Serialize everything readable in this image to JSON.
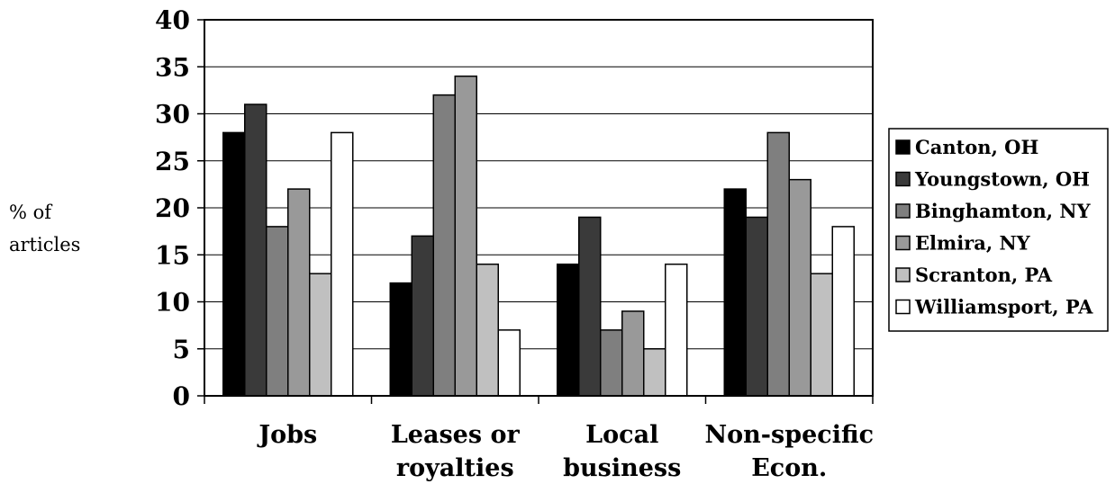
{
  "chart_data": {
    "type": "bar",
    "ylabel": "% of articles",
    "ylabel_lines": [
      "% of",
      "articles"
    ],
    "xlabel": "",
    "ylim": [
      0,
      40
    ],
    "yticks": [
      0,
      5,
      10,
      15,
      20,
      25,
      30,
      35,
      40
    ],
    "grid": "horizontal",
    "legend_position": "right",
    "categories": [
      "Jobs",
      "Leases or royalties",
      "Local business",
      "Non-specific Econ."
    ],
    "category_lines": [
      [
        "Jobs"
      ],
      [
        "Leases or",
        "royalties"
      ],
      [
        "Local",
        "business"
      ],
      [
        "Non-specific",
        "Econ."
      ]
    ],
    "series": [
      {
        "name": "Canton, OH",
        "color": "#000000",
        "values": [
          28,
          12,
          14,
          22
        ]
      },
      {
        "name": "Youngstown, OH",
        "color": "#3a3a3a",
        "values": [
          31,
          17,
          19,
          19
        ]
      },
      {
        "name": "Binghamton, NY",
        "color": "#7f7f7f",
        "values": [
          18,
          32,
          7,
          28
        ]
      },
      {
        "name": "Elmira, NY",
        "color": "#999999",
        "values": [
          22,
          34,
          9,
          23
        ]
      },
      {
        "name": "Scranton, PA",
        "color": "#c0c0c0",
        "values": [
          13,
          14,
          5,
          13
        ]
      },
      {
        "name": "Williamsport, PA",
        "color": "#ffffff",
        "values": [
          28,
          7,
          14,
          18
        ]
      }
    ]
  }
}
